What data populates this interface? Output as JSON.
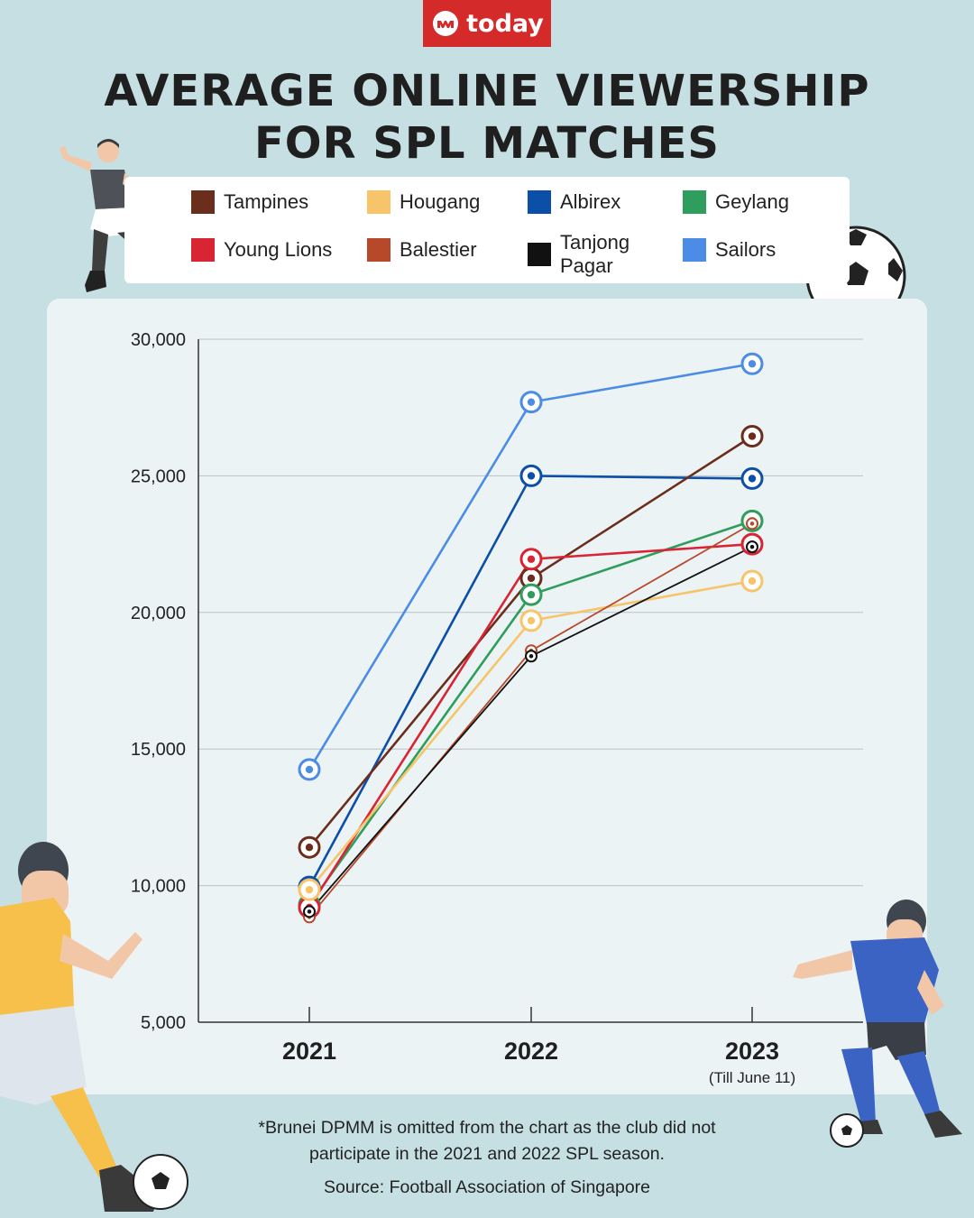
{
  "brand": {
    "logo_text": "today",
    "color": "#d42a2a"
  },
  "title": {
    "line1": "AVERAGE ONLINE VIEWERSHIP",
    "line2": "FOR SPL MATCHES"
  },
  "legend": [
    {
      "name": "Tampines",
      "color": "#6b2d1c"
    },
    {
      "name": "Hougang",
      "color": "#f8c46a"
    },
    {
      "name": "Albirex",
      "color": "#0b4fa8"
    },
    {
      "name": "Geylang",
      "color": "#2f9d5c"
    },
    {
      "name": "Young Lions",
      "color": "#d92434"
    },
    {
      "name": "Balestier",
      "color": "#b8482a"
    },
    {
      "name": "Tanjong Pagar",
      "color": "#111111"
    },
    {
      "name": "Sailors",
      "color": "#4a8ce6"
    }
  ],
  "chart_data": {
    "type": "line",
    "title": "AVERAGE ONLINE VIEWERSHIP FOR SPL MATCHES",
    "x": [
      "2021",
      "2022",
      "2023"
    ],
    "x_sublabels": [
      "",
      "",
      "(Till June 11)"
    ],
    "ylim": [
      5000,
      30000
    ],
    "yticks": [
      5000,
      10000,
      15000,
      20000,
      25000,
      30000
    ],
    "ytick_labels": [
      "5,000",
      "10,000",
      "15,000",
      "20,000",
      "25,000",
      "30,000"
    ],
    "grid": true,
    "legend_position": "top",
    "series": [
      {
        "name": "Sailors",
        "color": "#4a8ce6",
        "marker": "large",
        "values": [
          14250,
          27700,
          29100
        ]
      },
      {
        "name": "Albirex",
        "color": "#0b4fa8",
        "marker": "large",
        "values": [
          9950,
          25000,
          24900
        ]
      },
      {
        "name": "Tampines",
        "color": "#6b2d1c",
        "marker": "large",
        "values": [
          11400,
          21250,
          26450
        ]
      },
      {
        "name": "Geylang",
        "color": "#2f9d5c",
        "marker": "large",
        "values": [
          9300,
          20650,
          23350
        ]
      },
      {
        "name": "Young Lions",
        "color": "#d92434",
        "marker": "large",
        "values": [
          9200,
          21950,
          22500
        ]
      },
      {
        "name": "Hougang",
        "color": "#f8c46a",
        "marker": "large",
        "values": [
          9850,
          19700,
          21150
        ]
      },
      {
        "name": "Balestier",
        "color": "#b8482a",
        "marker": "small",
        "values": [
          8850,
          18600,
          23250
        ]
      },
      {
        "name": "Tanjong Pagar",
        "color": "#111111",
        "marker": "small",
        "values": [
          9050,
          18400,
          22400
        ]
      }
    ]
  },
  "footnote": {
    "line1": "*Brunei DPMM is omitted from the chart as the club did not",
    "line2": "participate in the 2021 and 2022 SPL season."
  },
  "source": "Source: Football Association of Singapore"
}
